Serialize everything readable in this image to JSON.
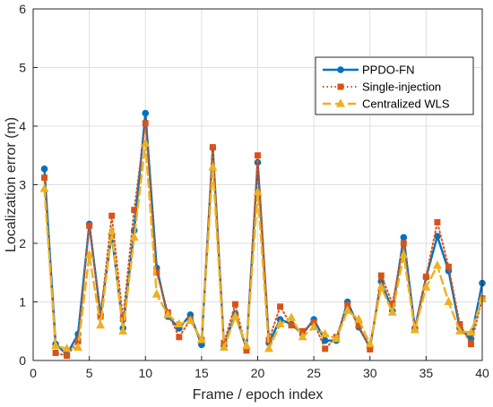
{
  "chart_data": {
    "type": "line",
    "xlabel": "Frame / epoch index",
    "ylabel": "Localization error (m)",
    "xlim": [
      0,
      40
    ],
    "ylim": [
      0,
      6
    ],
    "xticks": [
      0,
      5,
      10,
      15,
      20,
      25,
      30,
      35,
      40
    ],
    "yticks": [
      0,
      1,
      2,
      3,
      4,
      5,
      6
    ],
    "grid": true,
    "legend_position": "top-right",
    "x": [
      1,
      2,
      3,
      4,
      5,
      6,
      7,
      8,
      9,
      10,
      11,
      12,
      13,
      14,
      15,
      16,
      17,
      18,
      19,
      20,
      21,
      22,
      23,
      24,
      25,
      26,
      27,
      28,
      29,
      30,
      31,
      32,
      33,
      34,
      35,
      36,
      37,
      38,
      39,
      40
    ],
    "series": [
      {
        "name": "PPDO-FN",
        "color": "#0072BD",
        "marker": "circle",
        "line": "solid",
        "values": [
          3.27,
          0.28,
          0.1,
          0.45,
          2.33,
          0.78,
          2.15,
          0.55,
          2.22,
          4.22,
          1.58,
          0.75,
          0.55,
          0.78,
          0.27,
          3.63,
          0.25,
          0.8,
          0.2,
          3.38,
          0.3,
          0.7,
          0.62,
          0.45,
          0.7,
          0.34,
          0.34,
          1.0,
          0.57,
          0.22,
          1.35,
          0.85,
          2.1,
          0.55,
          1.42,
          2.12,
          1.53,
          0.55,
          0.37,
          1.32
        ]
      },
      {
        "name": "Single-injection",
        "color": "#D95319",
        "marker": "square",
        "line": "dotted",
        "values": [
          3.12,
          0.13,
          0.08,
          0.33,
          2.3,
          0.75,
          2.47,
          0.71,
          2.57,
          4.05,
          1.5,
          0.82,
          0.4,
          0.7,
          0.35,
          3.64,
          0.3,
          0.96,
          0.17,
          3.5,
          0.35,
          0.92,
          0.6,
          0.5,
          0.65,
          0.2,
          0.4,
          0.95,
          0.6,
          0.19,
          1.45,
          0.97,
          2.0,
          0.53,
          1.43,
          2.36,
          1.6,
          0.62,
          0.28,
          1.06
        ]
      },
      {
        "name": "Centralized WLS",
        "color": "#EDB120",
        "marker": "triangle",
        "line": "dashed",
        "values": [
          2.93,
          0.25,
          0.2,
          0.22,
          1.8,
          0.6,
          2.2,
          0.5,
          2.1,
          3.7,
          1.13,
          0.78,
          0.62,
          0.68,
          0.35,
          3.3,
          0.22,
          0.75,
          0.25,
          2.87,
          0.2,
          0.62,
          0.73,
          0.4,
          0.57,
          0.45,
          0.37,
          0.85,
          0.7,
          0.28,
          1.25,
          0.82,
          1.8,
          0.52,
          1.25,
          1.62,
          1.0,
          0.5,
          0.48,
          1.05
        ]
      }
    ]
  }
}
